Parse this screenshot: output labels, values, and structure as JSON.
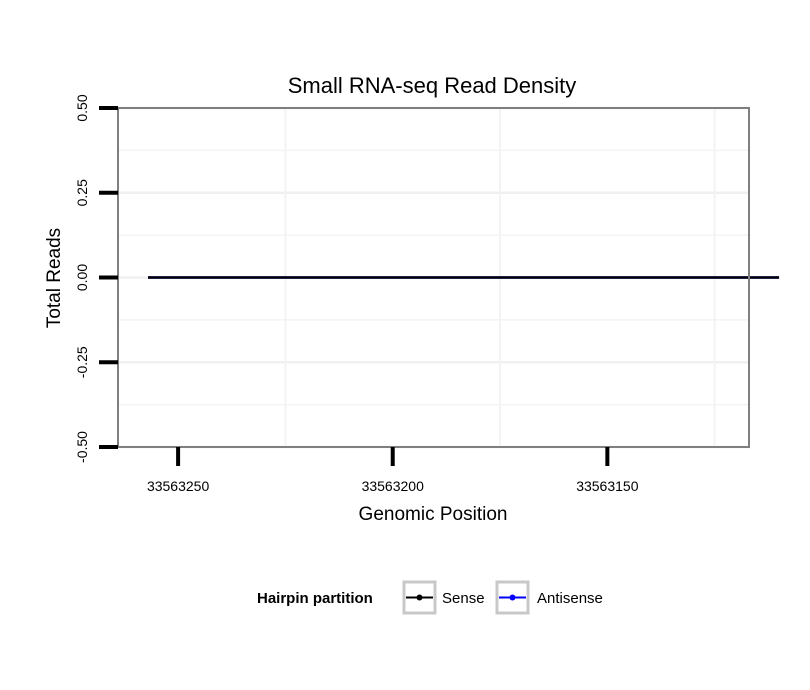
{
  "chart_data": {
    "type": "line",
    "title": "Small RNA-seq Read Density",
    "xlabel": "Genomic Position",
    "ylabel": "Total Reads",
    "x_reversed": true,
    "xlim": [
      33563264,
      33563117
    ],
    "ylim": [
      -0.5,
      0.5
    ],
    "x_ticks": [
      33563250,
      33563200,
      33563150
    ],
    "x_tick_labels": [
      "33563250",
      "33563200",
      "33563150"
    ],
    "x_minor_ticks": [
      33563225,
      33563175,
      33563125
    ],
    "y_ticks": [
      -0.5,
      -0.25,
      0,
      0.25,
      0.5
    ],
    "y_tick_labels": [
      "-0.50",
      "-0.25",
      "0.00",
      "0.25",
      "0.50"
    ],
    "y_minor_ticks": [
      -0.375,
      -0.125,
      0.125,
      0.375
    ],
    "grid": true,
    "legend": {
      "title": "Hairpin partition",
      "position": "bottom"
    },
    "series": [
      {
        "name": "Sense",
        "color": "#000000",
        "x": [
          33563257,
          33563110
        ],
        "values": [
          0,
          0
        ]
      },
      {
        "name": "Antisense",
        "color": "#0000ff",
        "x": [
          33563257,
          33563110
        ],
        "values": [
          0,
          0
        ]
      }
    ]
  }
}
